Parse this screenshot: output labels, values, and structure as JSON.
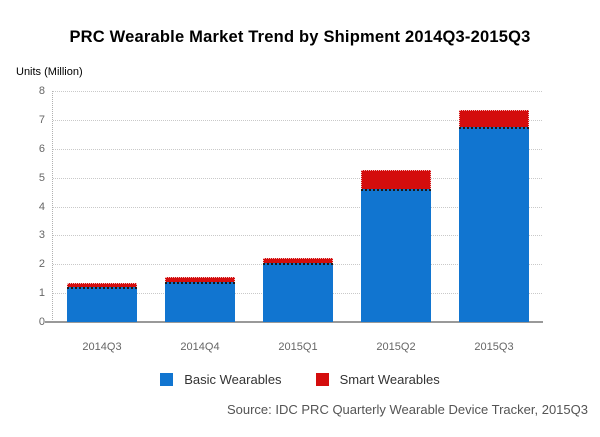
{
  "title": "PRC Wearable Market Trend by Shipment 2014Q3-2015Q3",
  "y_axis_title": "Units (Million)",
  "source_note": "Source: IDC PRC Quarterly Wearable Device Tracker, 2015Q3",
  "colors": {
    "basic_wearables": "#1175D0",
    "smart_wearables": "#D40D0D",
    "gridline": "#c9c9c9",
    "axis_line": "#999999",
    "tick_text": "#666666"
  },
  "chart_data": {
    "type": "bar",
    "stacked": true,
    "title": "PRC Wearable Market Trend by Shipment 2014Q3-2015Q3",
    "xlabel": "",
    "ylabel": "Units (Million)",
    "categories": [
      "2014Q3",
      "2014Q4",
      "2015Q1",
      "2015Q2",
      "2015Q3"
    ],
    "series": [
      {
        "name": "Basic Wearables",
        "color": "#1175D0",
        "values": [
          1.2,
          1.4,
          2.05,
          4.6,
          6.75
        ]
      },
      {
        "name": "Smart Wearables",
        "color": "#D40D0D",
        "values": [
          0.15,
          0.15,
          0.15,
          0.65,
          0.6
        ]
      }
    ],
    "totals": [
      1.35,
      1.55,
      2.2,
      5.25,
      7.35
    ],
    "ylim": [
      0,
      8
    ],
    "ytick_step": 1,
    "grid": true,
    "legend_position": "bottom"
  }
}
